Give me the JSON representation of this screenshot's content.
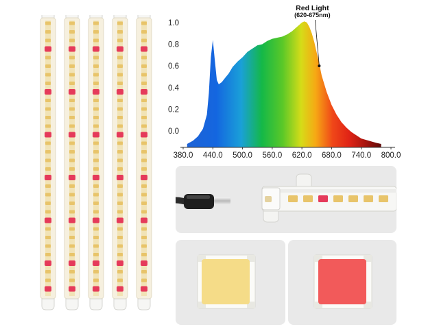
{
  "chart_data": {
    "type": "area",
    "title": "",
    "xlabel": "",
    "ylabel": "",
    "x_ticks": [
      380,
      440,
      500,
      560,
      620,
      680,
      740,
      800
    ],
    "x_tick_labels": [
      "380.0",
      "440.0",
      "500.0",
      "560.0",
      "620.0",
      "680.0",
      "740.0",
      "800.0"
    ],
    "y_ticks": [
      0,
      0.2,
      0.4,
      0.6,
      0.8,
      1.0
    ],
    "y_tick_labels": [
      "0.0",
      "0.2",
      "0.4",
      "0.6",
      "0.8",
      "1.0"
    ],
    "xlim": [
      380,
      800
    ],
    "ylim": [
      -0.12,
      1.05
    ],
    "grid": false,
    "series": [
      {
        "x": [
          388,
          400,
          410,
          420,
          428,
          432,
          436,
          440,
          444,
          448,
          452,
          458,
          465,
          472,
          480,
          490,
          500,
          510,
          520,
          530,
          540,
          550,
          560,
          570,
          580,
          590,
          600,
          610,
          620,
          625,
          630,
          635,
          640,
          645,
          650,
          655,
          660,
          670,
          680,
          690,
          700,
          710,
          720,
          730,
          740,
          755,
          770,
          780
        ],
        "y": [
          -0.12,
          -0.09,
          -0.05,
          0.02,
          0.15,
          0.35,
          0.68,
          0.84,
          0.65,
          0.47,
          0.43,
          0.45,
          0.49,
          0.53,
          0.59,
          0.64,
          0.68,
          0.73,
          0.76,
          0.79,
          0.8,
          0.83,
          0.85,
          0.86,
          0.87,
          0.89,
          0.92,
          0.96,
          1.0,
          1.01,
          1.0,
          0.96,
          0.9,
          0.82,
          0.72,
          0.62,
          0.51,
          0.36,
          0.24,
          0.15,
          0.08,
          0.03,
          -0.01,
          -0.04,
          -0.07,
          -0.09,
          -0.11,
          -0.12
        ]
      }
    ],
    "annotation": {
      "title": "Red Light",
      "subtitle": "(620-675nm)",
      "point_x": 655,
      "point_y": 0.6
    }
  },
  "strips": {
    "count": 5,
    "led_rows": 32
  },
  "colors": {
    "strip_body": "#f6f0df",
    "warm_led": "#e8c46a",
    "red_led": "#e53a5a",
    "panel": "#e9e9e9",
    "white_led_chip": "#f5dc88",
    "red_led_chip": "#f25a5a"
  }
}
